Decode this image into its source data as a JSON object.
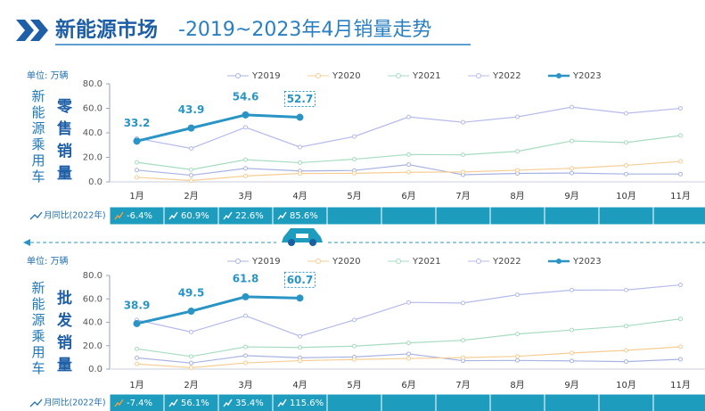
{
  "header": {
    "title_main": "新能源市场",
    "title_sub": "-2019~2023年4月销量走势"
  },
  "chart_data": [
    {
      "type": "line",
      "unit": "单位: 万辆",
      "side_label": "新能源乘用车",
      "metric": "零售销量",
      "categories": [
        "1月",
        "2月",
        "3月",
        "4月",
        "5月",
        "6月",
        "7月",
        "8月",
        "9月",
        "10月",
        "11月"
      ],
      "ylim": [
        0,
        80
      ],
      "yticks": [
        {
          "value": 0,
          "label": "0.0"
        },
        {
          "value": 20,
          "label": "20.0"
        },
        {
          "value": 40,
          "label": "40.0"
        },
        {
          "value": 60,
          "label": "60.0"
        },
        {
          "value": 80,
          "label": "80.0"
        }
      ],
      "series": [
        {
          "name": "Y2019",
          "color": "#a9b3e2",
          "values": [
            9.6,
            5.4,
            11,
            8.9,
            9.3,
            14.1,
            5.8,
            6.9,
            7.2,
            6.4,
            6.4
          ]
        },
        {
          "name": "Y2020",
          "color": "#f6cd92",
          "values": [
            3.7,
            1.1,
            4.8,
            6.8,
            7,
            7.8,
            8.1,
            9.5,
            11.1,
            13.5,
            16.7
          ]
        },
        {
          "name": "Y2021",
          "color": "#a6dcc0",
          "values": [
            15.9,
            10,
            18.1,
            15.7,
            18.5,
            22.3,
            22.1,
            24.9,
            33.4,
            32.1,
            37.8
          ]
        },
        {
          "name": "Y2022",
          "color": "#b5bbea",
          "values": [
            35.5,
            27.3,
            44.5,
            28.4,
            37,
            53,
            48.6,
            53,
            61,
            55.9,
            60
          ]
        },
        {
          "name": "Y2023",
          "color": "#2a95c5",
          "values": [
            33.2,
            43.9,
            54.6,
            52.7,
            null,
            null,
            null,
            null,
            null,
            null,
            null
          ]
        }
      ],
      "yoy": {
        "label": "月同比(2022年)",
        "values": [
          -6.4,
          60.9,
          22.6,
          85.6
        ],
        "value_labels": [
          "-6.4%",
          "60.9%",
          "22.6%",
          "85.6%"
        ]
      }
    },
    {
      "type": "line",
      "unit": "单位: 万辆",
      "side_label": "新能源乘用车",
      "metric": "批发销量",
      "categories": [
        "1月",
        "2月",
        "3月",
        "4月",
        "5月",
        "6月",
        "7月",
        "8月",
        "9月",
        "10月",
        "11月"
      ],
      "ylim": [
        0,
        80
      ],
      "yticks": [
        {
          "value": 0,
          "label": "0.0"
        },
        {
          "value": 20,
          "label": "20.0"
        },
        {
          "value": 40,
          "label": "40.0"
        },
        {
          "value": 60,
          "label": "60.0"
        },
        {
          "value": 80,
          "label": "80.0"
        }
      ],
      "series": [
        {
          "name": "Y2019",
          "color": "#a9b3e2",
          "values": [
            9.6,
            5.2,
            11.5,
            9.7,
            10.4,
            13,
            7.2,
            7.4,
            7,
            6.4,
            8.4
          ]
        },
        {
          "name": "Y2020",
          "color": "#f6cd92",
          "values": [
            4.4,
            1.2,
            5.3,
            7.2,
            8.2,
            9.1,
            9.8,
            10.9,
            13.8,
            16,
            19.1
          ]
        },
        {
          "name": "Y2021",
          "color": "#a6dcc0",
          "values": [
            17.3,
            10.8,
            19,
            18.5,
            19.6,
            22.4,
            24.6,
            30,
            33.4,
            36.8,
            42.9
          ]
        },
        {
          "name": "Y2022",
          "color": "#b5bbea",
          "values": [
            42,
            31.7,
            45.6,
            28.1,
            42,
            57,
            56.5,
            63.5,
            67.5,
            67.6,
            72
          ]
        },
        {
          "name": "Y2023",
          "color": "#2a95c5",
          "values": [
            38.9,
            49.5,
            61.8,
            60.7,
            null,
            null,
            null,
            null,
            null,
            null,
            null
          ]
        }
      ],
      "yoy": {
        "label": "月同比(2022年)",
        "values": [
          -7.4,
          56.1,
          35.4,
          115.6
        ],
        "value_labels": [
          "-7.4%",
          "56.1%",
          "35.4%",
          "115.6%"
        ]
      }
    }
  ]
}
